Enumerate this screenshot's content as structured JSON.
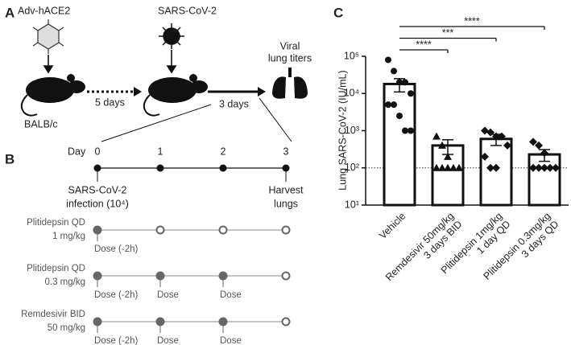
{
  "panel_a": {
    "label": "A",
    "vector": "Adv-hACE2",
    "virus": "SARS-CoV-2",
    "strain": "BALB/c",
    "interval_1": "5 days",
    "interval_2": "3 days",
    "readout": [
      "Viral",
      "lung titers"
    ]
  },
  "panel_b": {
    "label": "B",
    "day_label": "Day",
    "days": [
      0,
      1,
      2,
      3
    ],
    "start_event": [
      "SARS-CoV-2",
      "infection (10⁴)"
    ],
    "end_event": [
      "Harvest",
      "lungs"
    ],
    "regimens": [
      {
        "drug": "Plitidepsin QD",
        "dose": "1 mg/kg",
        "events": [
          "Dose (-2h)",
          null,
          null,
          null
        ]
      },
      {
        "drug": "Plitidepsin QD",
        "dose": "0.3 mg/kg",
        "events": [
          "Dose (-2h)",
          "Dose",
          "Dose",
          null
        ]
      },
      {
        "drug": "Remdesivir BID",
        "dose": "50 mg/kg",
        "events": [
          "Dose (-2h)",
          "Dose",
          "Dose",
          null
        ]
      }
    ]
  },
  "chart_data": {
    "type": "bar",
    "panel_label": "C",
    "y_label": "Lung SARS-CoV-2 (IU/mL)",
    "log_scale": true,
    "categories": [
      [
        "Vehicle"
      ],
      [
        "Remdesivir 50mg/kg",
        "3 days BID"
      ],
      [
        "Plitidepsin 1mg/kg",
        "1 day QD"
      ],
      [
        "Plitidepsin 0.3mg/kg",
        "3 days QD"
      ]
    ],
    "values": [
      18000,
      400,
      600,
      230
    ],
    "errors": [
      7000,
      170,
      200,
      80
    ],
    "points": [
      [
        80000,
        40000,
        20000,
        20000,
        10000,
        5000,
        5000,
        2500,
        1000,
        1000
      ],
      [
        700,
        400,
        200,
        100,
        100,
        100,
        100,
        100
      ],
      [
        1000,
        900,
        700,
        700,
        400,
        200,
        100,
        100
      ],
      [
        500,
        400,
        250,
        100,
        100,
        100,
        100,
        100
      ]
    ],
    "markers": [
      "circle",
      "triangle",
      "diamond",
      "diamond"
    ],
    "significance": [
      "****",
      "***",
      "****"
    ],
    "reference_line": 100,
    "color": "#111111",
    "ylim": [
      10,
      100000
    ],
    "yticks": [
      {
        "value": 10,
        "label": "10¹"
      },
      {
        "value": 100,
        "label": "10²"
      },
      {
        "value": 1000,
        "label": "10³"
      },
      {
        "value": 10000,
        "label": "10⁴"
      },
      {
        "value": 100000,
        "label": "10⁵"
      }
    ]
  }
}
